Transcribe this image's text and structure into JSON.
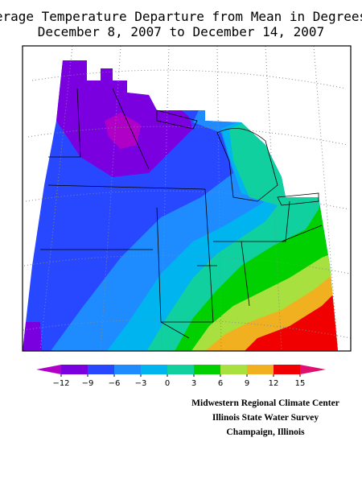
{
  "title": [
    "Average Temperature Departure from Mean in Degrees F",
    "December 8, 2007 to December 14, 2007"
  ],
  "legend": {
    "ticks": [
      {
        "value": -12,
        "label": "−12"
      },
      {
        "value": -9,
        "label": "−9"
      },
      {
        "value": -6,
        "label": "−6"
      },
      {
        "value": -3,
        "label": "−3"
      },
      0,
      3,
      6,
      9,
      12,
      15
    ],
    "colors": [
      "#b000c8",
      "#7a00e0",
      "#2848ff",
      "#1e8cff",
      "#00b4f0",
      "#10d0a0",
      "#00d000",
      "#a8e040",
      "#f0b020",
      "#f00000",
      "#e01070"
    ]
  },
  "credits": [
    "Midwestern Regional Climate Center",
    "Illinois State Water Survey",
    "Champaign, Illinois"
  ]
}
